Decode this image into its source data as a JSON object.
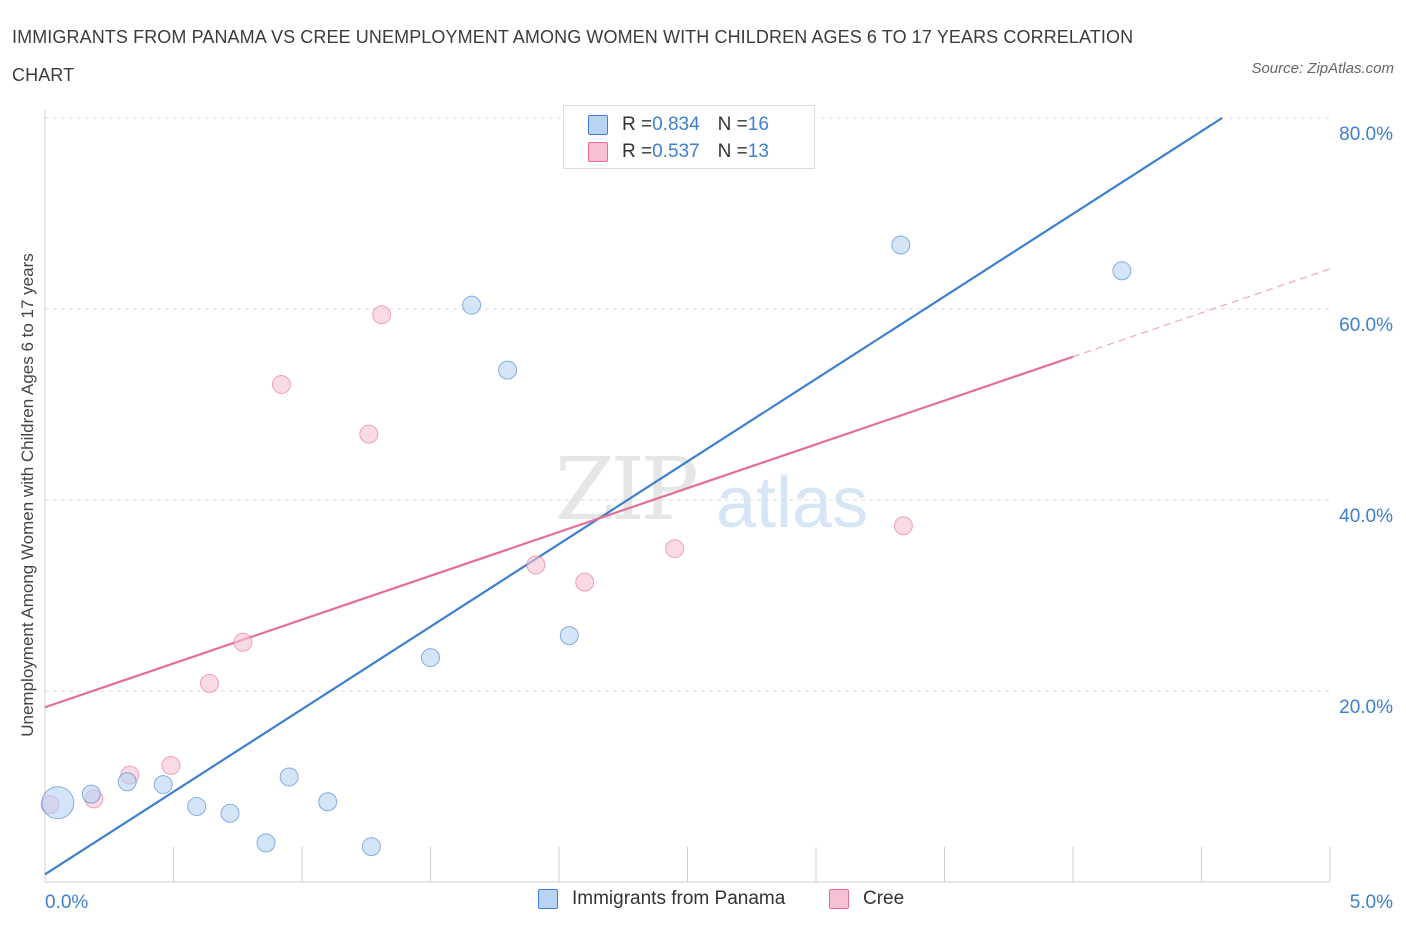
{
  "title": "IMMIGRANTS FROM PANAMA VS CREE UNEMPLOYMENT AMONG WOMEN WITH CHILDREN AGES 6 TO 17 YEARS CORRELATION CHART",
  "source": "Source: ZipAtlas.com",
  "watermark": {
    "zip": "ZIP",
    "atlas": "atlas"
  },
  "colors": {
    "blue": "#3d7fd1",
    "blue_fill": "#b8d3f4",
    "pink": "#e46e96",
    "pink_fill": "#f6c1d2",
    "grid": "#dddddd"
  },
  "legend": {
    "rows": [
      {
        "r_label": "R = ",
        "r_value": "0.834",
        "n_label": "N = ",
        "n_value": "16"
      },
      {
        "r_label": "R = ",
        "r_value": "0.537",
        "n_label": "N = ",
        "n_value": "13"
      }
    ]
  },
  "chart_data": {
    "type": "scatter",
    "title": "IMMIGRANTS FROM PANAMA VS CREE UNEMPLOYMENT AMONG WOMEN WITH CHILDREN AGES 6 TO 17 YEARS CORRELATION CHART",
    "xlabel": "",
    "ylabel": "Unemployment Among Women with Children Ages 6 to 17 years",
    "xlim": [
      0,
      5
    ],
    "ylim": [
      0,
      80
    ],
    "x_tick_labels": [
      {
        "value": 0,
        "label": "0.0%"
      },
      {
        "value": 5,
        "label": "5.0%"
      }
    ],
    "y_tick_labels": [
      {
        "value": 20,
        "label": "20.0%"
      },
      {
        "value": 40,
        "label": "40.0%"
      },
      {
        "value": 60,
        "label": "60.0%"
      },
      {
        "value": 80,
        "label": "80.0%"
      }
    ],
    "grid": true,
    "legend_position": "bottom-center",
    "series": [
      {
        "name": "Immigrants from Panama",
        "color": "#3d7fd1",
        "fill": "#b8d3f4",
        "R": 0.834,
        "N": 16,
        "points": [
          {
            "x": 0.05,
            "y": 8.3,
            "size": "large"
          },
          {
            "x": 0.18,
            "y": 9.2
          },
          {
            "x": 0.32,
            "y": 10.5
          },
          {
            "x": 0.46,
            "y": 10.2
          },
          {
            "x": 0.59,
            "y": 7.9
          },
          {
            "x": 0.72,
            "y": 7.2
          },
          {
            "x": 0.86,
            "y": 4.1
          },
          {
            "x": 0.95,
            "y": 11.0
          },
          {
            "x": 1.1,
            "y": 8.4
          },
          {
            "x": 1.27,
            "y": 3.7
          },
          {
            "x": 1.5,
            "y": 23.5
          },
          {
            "x": 1.66,
            "y": 60.4
          },
          {
            "x": 1.8,
            "y": 53.6
          },
          {
            "x": 2.04,
            "y": 25.8
          },
          {
            "x": 3.33,
            "y": 66.7
          },
          {
            "x": 4.19,
            "y": 64.0
          }
        ],
        "trendline": {
          "x": [
            0,
            4.58
          ],
          "y": [
            0.8,
            80.0
          ],
          "style": "solid"
        }
      },
      {
        "name": "Cree",
        "color": "#e46e96",
        "fill": "#f6c1d2",
        "R": 0.537,
        "N": 13,
        "points": [
          {
            "x": 0.02,
            "y": 8.1
          },
          {
            "x": 0.19,
            "y": 8.7
          },
          {
            "x": 0.33,
            "y": 11.2
          },
          {
            "x": 0.49,
            "y": 12.2
          },
          {
            "x": 0.64,
            "y": 20.8
          },
          {
            "x": 0.77,
            "y": 25.1
          },
          {
            "x": 0.92,
            "y": 52.1
          },
          {
            "x": 1.26,
            "y": 46.9
          },
          {
            "x": 1.31,
            "y": 59.4
          },
          {
            "x": 1.91,
            "y": 33.2
          },
          {
            "x": 2.1,
            "y": 31.4
          },
          {
            "x": 2.45,
            "y": 34.9
          },
          {
            "x": 3.34,
            "y": 37.3
          }
        ],
        "trendline": {
          "x": [
            0,
            4.0
          ],
          "y": [
            18.3,
            55.0
          ],
          "style": "solid",
          "extended": {
            "x": [
              4.0,
              5.0
            ],
            "y": [
              55.0,
              64.2
            ],
            "style": "dashed"
          }
        }
      }
    ]
  }
}
